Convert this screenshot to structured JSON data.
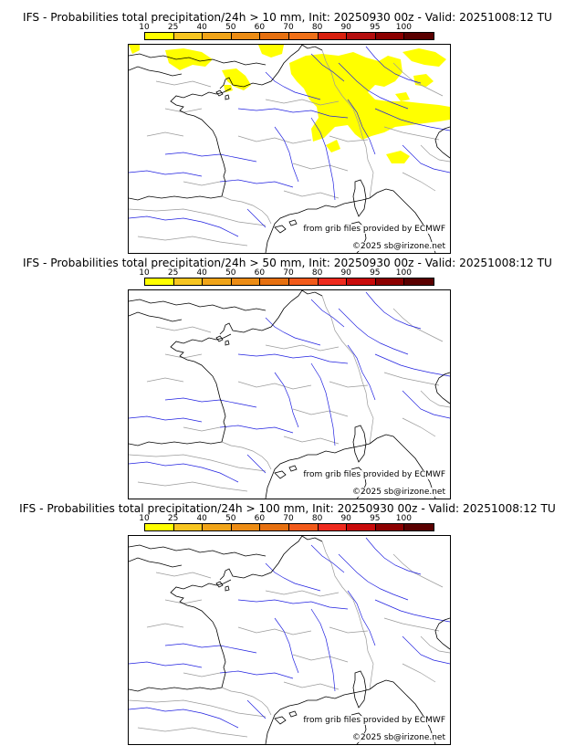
{
  "panels": [
    {
      "title": "IFS - Probabilities total precipitation/24h > 10 mm, Init: 20250930 00z - Valid: 20251008:12 TU",
      "threshold_mm": 10,
      "source_credit": "from grib files provided by ECMWF",
      "copyright": "©2025 sb@irizone.net",
      "precip_fill_color": "#ffff00",
      "precip_prob_area": "10-25"
    },
    {
      "title": "IFS - Probabilities total precipitation/24h > 50 mm, Init: 20250930 00z - Valid: 20251008:12 TU",
      "threshold_mm": 50,
      "source_credit": "from grib files provided by ECMWF",
      "copyright": "©2025 sb@irizone.net"
    },
    {
      "title": "IFS - Probabilities total precipitation/24h > 100 mm, Init: 20250930 00z - Valid: 20251008:12 TU",
      "threshold_mm": 100,
      "source_credit": "from grib files provided by ECMWF",
      "copyright": "©2025 sb@irizone.net"
    }
  ],
  "colorbar": {
    "labels": [
      "10",
      "25",
      "40",
      "50",
      "60",
      "70",
      "80",
      "90",
      "95",
      "100"
    ],
    "colors": [
      "#ffff00",
      "#f7c520",
      "#f0a418",
      "#ec8c14",
      "#e67010",
      "#f25a1a",
      "#ee2a1e",
      "#c80a0a",
      "#8c0000",
      "#5a0000"
    ],
    "colors_panel1": [
      "#ffff00",
      "#f7c520",
      "#f0a418",
      "#ec8c14",
      "#e67010",
      "#f07018",
      "#d8200e",
      "#b40e0e",
      "#8c0000",
      "#5a0000"
    ]
  },
  "map_colors": {
    "coast": "#000000",
    "rivers": "#2020e0",
    "borders": "#9a9a9a"
  }
}
